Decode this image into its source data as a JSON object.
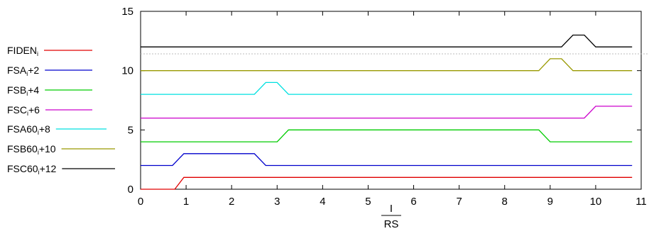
{
  "chart_data": {
    "type": "line",
    "xlim": [
      0,
      11
    ],
    "ylim": [
      0,
      15
    ],
    "xticks": [
      0,
      1,
      2,
      3,
      4,
      5,
      6,
      7,
      8,
      9,
      10,
      11
    ],
    "yticks": [
      0,
      5,
      10,
      15
    ],
    "xlabel_num": "I",
    "xlabel_den": "RS",
    "grid": false,
    "legend_position": "left",
    "series": [
      {
        "name_main": "FIDEN",
        "name_sub": "i",
        "name_suffix": "",
        "color": "#e00000",
        "x": [
          0,
          0.75,
          0.95,
          10.8
        ],
        "y": [
          0,
          0,
          1,
          1
        ]
      },
      {
        "name_main": "FSA",
        "name_sub": "i",
        "name_suffix": "+2",
        "color": "#0000cc",
        "x": [
          0,
          0.7,
          0.95,
          2.5,
          2.75,
          10.8
        ],
        "y": [
          2,
          2,
          3,
          3,
          2,
          2
        ]
      },
      {
        "name_main": "FSB",
        "name_sub": "i",
        "name_suffix": "+4",
        "color": "#00cc00",
        "x": [
          0,
          3.0,
          3.25,
          8.75,
          9.0,
          10.8
        ],
        "y": [
          4,
          4,
          5,
          5,
          4,
          4
        ]
      },
      {
        "name_main": "FSC",
        "name_sub": "i",
        "name_suffix": "+6",
        "color": "#cc00cc",
        "x": [
          0,
          9.75,
          10.0,
          10.8
        ],
        "y": [
          6,
          6,
          7,
          7
        ]
      },
      {
        "name_main": "FSA60",
        "name_sub": "i",
        "name_suffix": "+8",
        "color": "#00e0e0",
        "x": [
          0,
          2.5,
          2.75,
          3.0,
          3.25,
          10.8
        ],
        "y": [
          8,
          8,
          9,
          9,
          8,
          8
        ]
      },
      {
        "name_main": "FSB60",
        "name_sub": "i",
        "name_suffix": "+10",
        "color": "#999900",
        "x": [
          0,
          8.75,
          9.0,
          9.25,
          9.5,
          10.8
        ],
        "y": [
          10,
          10,
          11,
          11,
          10,
          10
        ]
      },
      {
        "name_main": "FSC60",
        "name_sub": "i",
        "name_suffix": "+12",
        "color": "#000000",
        "x": [
          0,
          9.25,
          9.5,
          9.75,
          10.0,
          10.8
        ],
        "y": [
          12,
          12,
          13,
          13,
          12,
          12
        ]
      }
    ]
  }
}
